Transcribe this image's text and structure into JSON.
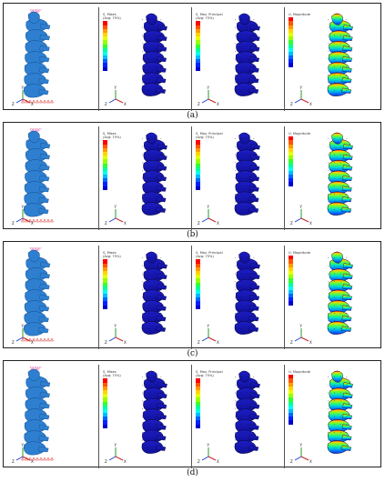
{
  "captions": [
    "(a)",
    "(b)",
    "(c)",
    "(d)"
  ],
  "legend_titles": {
    "mises": [
      "S, Mises",
      "(Avg: 75%)"
    ],
    "principal": [
      "S, Max. Principal",
      "(Avg: 75%)"
    ],
    "magnitude": [
      "U, Magnitude"
    ]
  },
  "colors": {
    "spine_blue": "#2f7fd0",
    "stress_blue": "#1515b0",
    "load_arrow": "#d64aa0",
    "boundary": "#d82020",
    "legend_scale": [
      "#ff0000",
      "#ff5500",
      "#ff9900",
      "#ffd400",
      "#e6ff00",
      "#99ff00",
      "#33ff33",
      "#00ff99",
      "#00ffee",
      "#00bbff",
      "#0066ff",
      "#0022ff",
      "#0000cc"
    ]
  },
  "axis_labels": {
    "y": "Y",
    "z": "Z",
    "x": "X"
  }
}
